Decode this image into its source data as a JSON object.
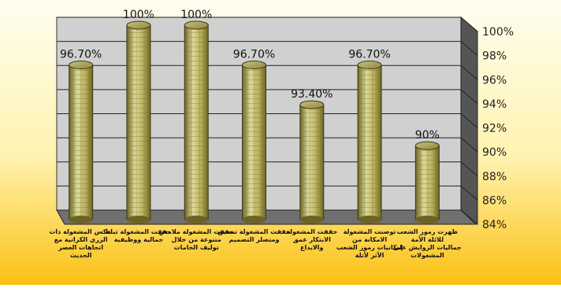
{
  "chart_data": {
    "type": "bar",
    "title": "",
    "xlabel": "",
    "ylabel": "",
    "ylim": [
      84,
      100
    ],
    "yticks": [
      84,
      86,
      88,
      90,
      92,
      94,
      96,
      98,
      100
    ],
    "ytick_format": "{v}%",
    "grid": true,
    "legend": "none",
    "categories": [
      "تعكس المشغولة ذات الزري الكراتية مع اتجاهات العصر الحديث",
      "حققت المشغولة ثباتا جمالية ووظيفية",
      "حققت المشغولة ملامس متنوعة من خلال توليف الخامات",
      "حققت المشغولة تنسيق ومتصلر التصميم",
      "حققت المشغولة الابتكار عمق والابداع",
      "توصنت المشغولة الامكانة من إمكانيات رموز الشعب الأثر لأثلة الإسلامية في تصميم مشغولات مستحدثة",
      "ظهرت رموز الشعب للائلة الأمة جماليات الزوايش على المشغولات"
    ],
    "values": [
      96.7,
      100,
      100,
      96.7,
      93.4,
      96.7,
      90
    ],
    "data_labels": [
      "96.70%",
      "100%",
      "100%",
      "96.70%",
      "93.40%",
      "96.70%",
      "90%"
    ]
  },
  "colors": {
    "background_top": "#fffef0",
    "background_bottom": "#fbc012",
    "wall": "#d0d0d0",
    "floor": "#707070",
    "side_wall": "#555555",
    "bar_main": "#b8ae5a",
    "bar_dark": "#6b6325",
    "bar_light": "#dedb9a",
    "brick_line": "#8a8238"
  }
}
